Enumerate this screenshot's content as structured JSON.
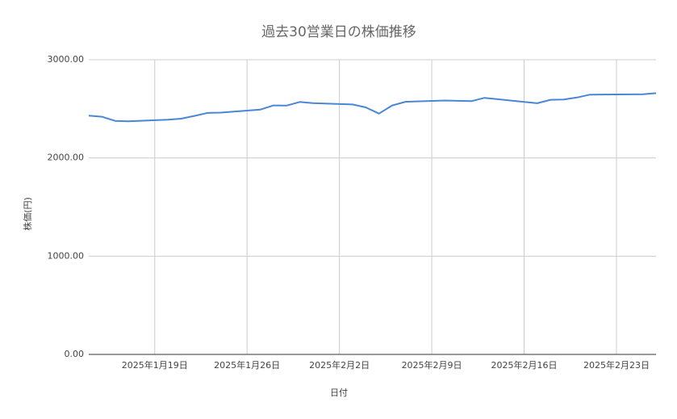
{
  "chart_data": {
    "type": "line",
    "title": "過去30営業日の株価推移",
    "x_label": "日付",
    "y_label": "株価(円)",
    "x": [
      "2025-01-14",
      "2025-01-15",
      "2025-01-16",
      "2025-01-17",
      "2025-01-20",
      "2025-01-21",
      "2025-01-22",
      "2025-01-23",
      "2025-01-24",
      "2025-01-27",
      "2025-01-28",
      "2025-01-29",
      "2025-01-30",
      "2025-01-31",
      "2025-02-03",
      "2025-02-04",
      "2025-02-05",
      "2025-02-06",
      "2025-02-07",
      "2025-02-10",
      "2025-02-12",
      "2025-02-13",
      "2025-02-14",
      "2025-02-17",
      "2025-02-18",
      "2025-02-19",
      "2025-02-20",
      "2025-02-21",
      "2025-02-25",
      "2025-02-26"
    ],
    "values": [
      2430,
      2420,
      2378,
      2373,
      2390,
      2400,
      2428,
      2458,
      2462,
      2492,
      2535,
      2533,
      2570,
      2558,
      2545,
      2515,
      2452,
      2535,
      2572,
      2585,
      2578,
      2612,
      2598,
      2557,
      2592,
      2596,
      2615,
      2645,
      2648,
      2660
    ],
    "color": "#4a86d6",
    "xlim": [
      "2025-01-14",
      "2025-02-26"
    ],
    "xticks": [
      {
        "value": "2025-01-19",
        "label": "2025年1月19日"
      },
      {
        "value": "2025-01-26",
        "label": "2025年1月26日"
      },
      {
        "value": "2025-02-02",
        "label": "2025年2月2日"
      },
      {
        "value": "2025-02-09",
        "label": "2025年2月9日"
      },
      {
        "value": "2025-02-16",
        "label": "2025年2月16日"
      },
      {
        "value": "2025-02-23",
        "label": "2025年2月23日"
      }
    ],
    "ylim": [
      0,
      3000
    ],
    "yticks": [
      {
        "value": 0,
        "label": "0.00"
      },
      {
        "value": 1000,
        "label": "1000.00"
      },
      {
        "value": 2000,
        "label": "2000.00"
      },
      {
        "value": 3000,
        "label": "3000.00"
      }
    ],
    "grid": true
  }
}
